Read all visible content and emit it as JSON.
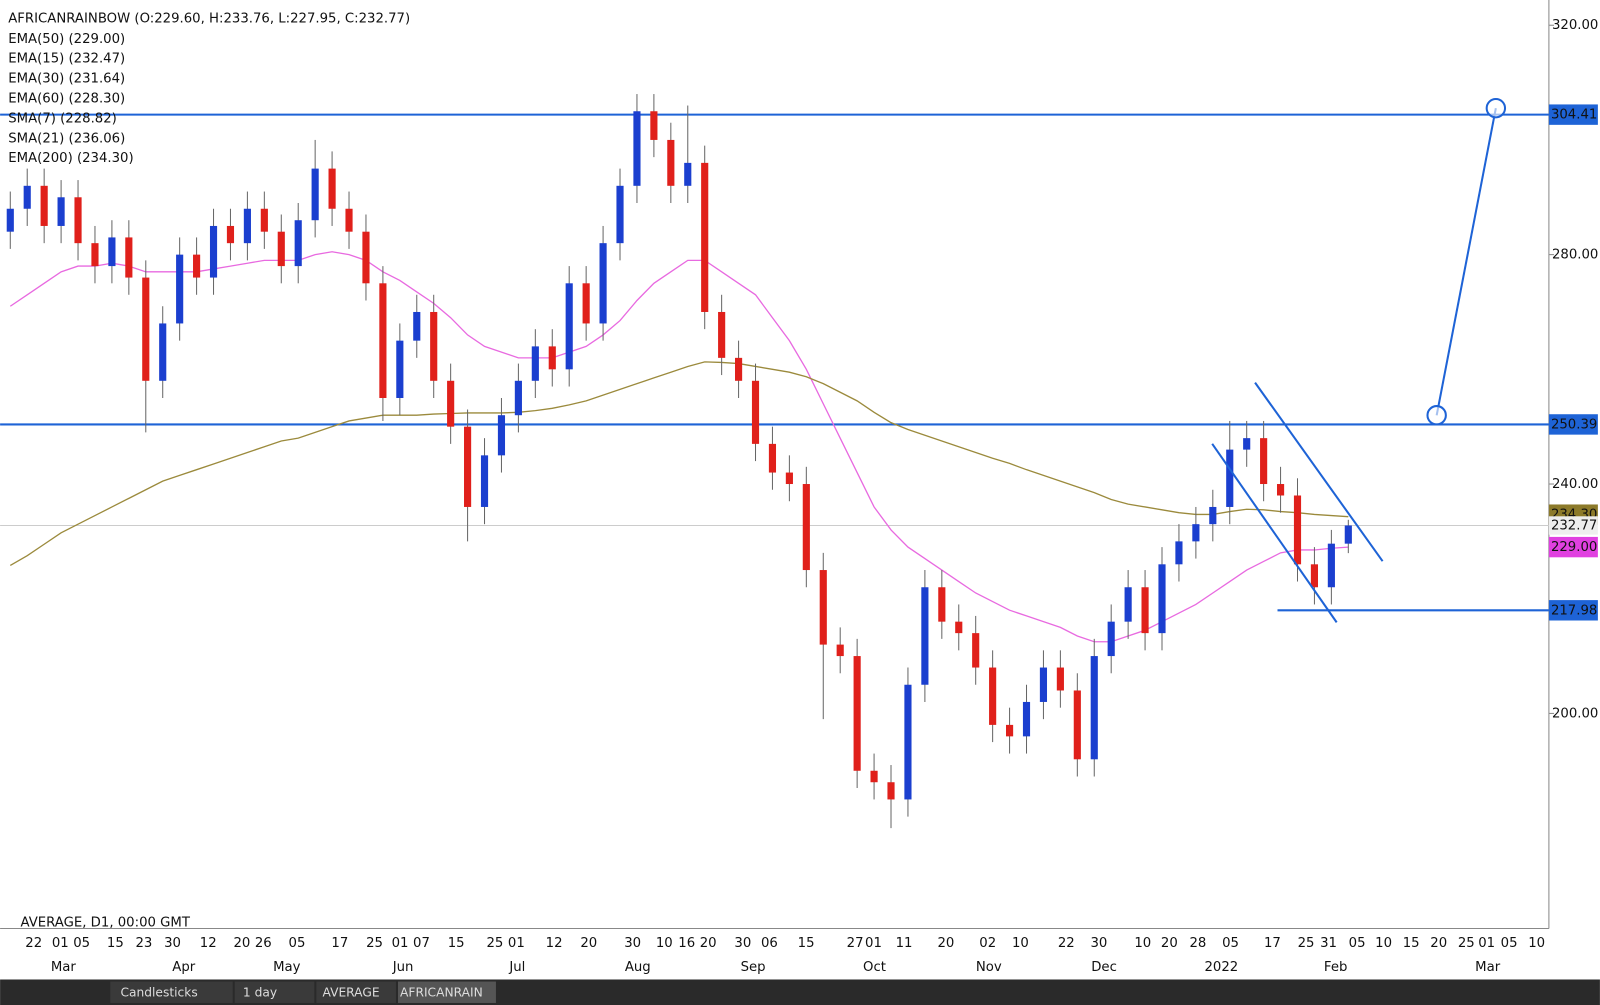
{
  "chart_data": {
    "type": "candlestick",
    "header": "AFRICANRAINBOW (O:229.60, H:233.76, L:227.95, C:232.77)",
    "indicators": [
      "EMA(50) (229.00)",
      "EMA(15) (232.47)",
      "EMA(30) (231.64)",
      "EMA(60) (228.30)",
      "SMA(7) (228.82)",
      "SMA(21) (236.06)",
      "EMA(200) (234.30)"
    ],
    "footer": "AVERAGE, D1, 00:00 GMT",
    "toolbar": [
      "Candlesticks",
      "1 day",
      "AVERAGE",
      "AFRICANRAIN"
    ],
    "ylim": [
      162.5,
      324.4
    ],
    "yticks": [
      {
        "value": 200,
        "label": "200.00"
      },
      {
        "value": 240,
        "label": "240.00"
      },
      {
        "value": 280,
        "label": "280.00"
      },
      {
        "value": 320,
        "label": "320.00"
      }
    ],
    "xtick_labels": [
      "22",
      "01",
      "05",
      "15",
      "23",
      "30",
      "12",
      "20",
      "26",
      "05",
      "17",
      "25",
      "01",
      "07",
      "15",
      "25",
      "01",
      "12",
      "20",
      "30",
      "10",
      "16",
      "20",
      "30",
      "06",
      "15",
      "27",
      "01",
      "11",
      "20",
      "02",
      "10",
      "22",
      "30",
      "10",
      "20",
      "28",
      "05",
      "17",
      "25",
      "31",
      "05",
      "10",
      "15",
      "20",
      "25",
      "01",
      "05",
      "10"
    ],
    "month_labels": [
      "Mar",
      "Apr",
      "May",
      "Jun",
      "Jul",
      "Aug",
      "Sep",
      "Oct",
      "Nov",
      "Dec",
      "2022",
      "Feb",
      "Mar"
    ],
    "up_color": "#1b3fcf",
    "down_color": "#e0201b",
    "open": [
      284,
      288,
      292,
      285,
      290,
      282,
      278,
      283,
      276,
      258,
      268,
      280,
      276,
      285,
      282,
      288,
      284,
      278,
      286,
      295,
      288,
      284,
      275,
      255,
      265,
      270,
      258,
      250,
      236,
      245,
      252,
      258,
      264,
      260,
      275,
      268,
      282,
      292,
      305,
      300,
      292,
      296,
      270,
      262,
      258,
      247,
      242,
      240,
      225,
      212,
      210,
      190,
      188,
      185,
      205,
      222,
      216,
      214,
      208,
      198,
      196,
      202,
      208,
      204,
      192,
      210,
      216,
      222,
      214,
      226,
      230,
      233,
      236,
      246,
      248,
      240,
      238,
      226,
      222,
      229.6
    ],
    "high": [
      291,
      295,
      295,
      293,
      293,
      285,
      286,
      286,
      279,
      271,
      283,
      283,
      288,
      288,
      291,
      291,
      287,
      289,
      300,
      298,
      291,
      287,
      278,
      268,
      273,
      273,
      261,
      253,
      248,
      255,
      261,
      267,
      267,
      278,
      278,
      285,
      295,
      308,
      308,
      303,
      306,
      299,
      273,
      265,
      261,
      250,
      245,
      243,
      228,
      215,
      213,
      193,
      191,
      208,
      225,
      225,
      219,
      217,
      211,
      201,
      205,
      211,
      211,
      207,
      213,
      219,
      225,
      225,
      229,
      233,
      236,
      239,
      251,
      251,
      251,
      243,
      241,
      229,
      232,
      233.76
    ],
    "low": [
      281,
      285,
      282,
      282,
      279,
      275,
      275,
      273,
      249,
      255,
      265,
      273,
      273,
      279,
      279,
      281,
      275,
      275,
      283,
      285,
      281,
      272,
      251,
      252,
      262,
      255,
      247,
      230,
      233,
      242,
      249,
      255,
      257,
      257,
      265,
      265,
      279,
      289,
      297,
      289,
      289,
      267,
      259,
      255,
      244,
      239,
      237,
      222,
      199,
      207,
      187,
      185,
      180,
      182,
      202,
      213,
      211,
      205,
      195,
      193,
      193,
      199,
      201,
      189,
      189,
      207,
      213,
      211,
      211,
      223,
      227,
      230,
      233,
      243,
      237,
      235,
      223,
      219,
      219,
      227.95
    ],
    "close": [
      288,
      292,
      285,
      290,
      282,
      278,
      283,
      276,
      258,
      268,
      280,
      276,
      285,
      282,
      288,
      284,
      278,
      286,
      295,
      288,
      284,
      275,
      255,
      265,
      270,
      258,
      250,
      236,
      245,
      252,
      258,
      264,
      260,
      275,
      268,
      282,
      292,
      305,
      300,
      292,
      296,
      270,
      262,
      258,
      247,
      242,
      240,
      225,
      212,
      210,
      190,
      188,
      185,
      205,
      222,
      216,
      214,
      208,
      198,
      196,
      202,
      208,
      204,
      192,
      210,
      216,
      222,
      214,
      226,
      230,
      233,
      236,
      246,
      248,
      240,
      238,
      226,
      222,
      229.6,
      232.77
    ],
    "series": [
      {
        "name": "EMA(50)",
        "color": "#e86ae0",
        "tag_color": "#e040e0",
        "last_label": "229.00",
        "values": [
          271,
          273,
          275,
          277,
          278,
          278,
          278.5,
          278,
          277,
          277,
          277,
          277,
          277.5,
          278,
          278.5,
          279,
          279,
          279,
          280,
          280.5,
          280,
          279,
          277,
          275.5,
          273.5,
          271.5,
          269,
          266,
          264,
          263,
          262,
          262,
          262,
          263,
          264,
          266,
          268.5,
          272,
          275,
          277,
          279,
          279,
          277,
          275,
          273,
          269,
          265,
          260,
          254,
          248,
          242,
          236,
          232,
          229,
          227,
          225,
          223,
          221,
          219.5,
          218,
          217,
          216,
          215,
          213.5,
          212.5,
          212.5,
          213.5,
          214.5,
          216,
          217.5,
          219,
          221,
          223,
          225,
          226.5,
          228,
          228.5,
          228.5,
          228.8,
          229
        ]
      },
      {
        "name": "EMA(200)",
        "color": "#9b8a3c",
        "tag_color": "#8c7a2a",
        "last_label": "234.30",
        "values": [
          225.8,
          227.5,
          229.5,
          231.5,
          233,
          234.5,
          236,
          237.5,
          239,
          240.5,
          241.5,
          242.5,
          243.5,
          244.5,
          245.5,
          246.5,
          247.5,
          248,
          249,
          250,
          251,
          251.5,
          252,
          252,
          252,
          252.2,
          252.3,
          252.4,
          252.4,
          252.4,
          252.5,
          252.8,
          253.2,
          253.8,
          254.5,
          255.5,
          256.5,
          257.5,
          258.5,
          259.5,
          260.5,
          261.3,
          261.2,
          261,
          260.5,
          260,
          259.5,
          258.7,
          257.5,
          256,
          254.5,
          252.5,
          250.7,
          249.5,
          248.5,
          247.5,
          246.5,
          245.5,
          244.5,
          243.6,
          242.5,
          241.5,
          240.5,
          239.5,
          238.5,
          237.3,
          236.5,
          236,
          235.5,
          235,
          234.7,
          234.7,
          235.2,
          235.6,
          235.5,
          235.2,
          235,
          234.7,
          234.5,
          234.3
        ]
      }
    ],
    "hlines": [
      304.41,
      250.39,
      217.98
    ],
    "hline_color": "#1e63d6"
  }
}
